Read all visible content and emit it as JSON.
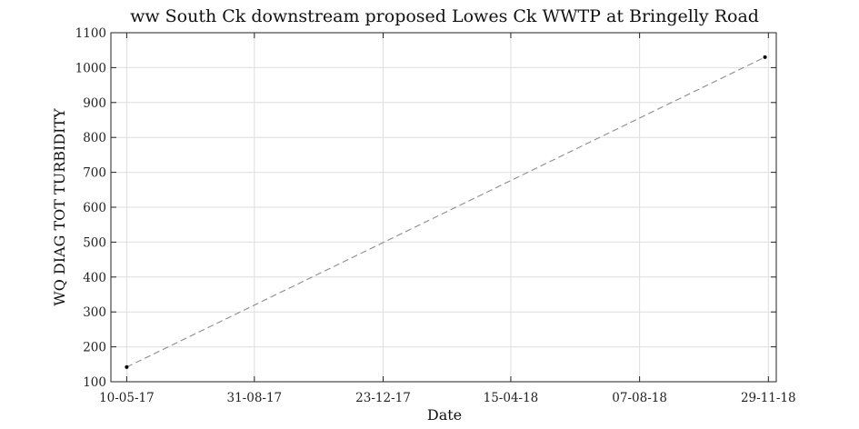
{
  "chart_data": {
    "type": "line",
    "title": "ww South Ck downstream proposed Lowes Ck WWTP at Bringelly Road",
    "xlabel": "Date",
    "ylabel": "WQ DIAG TOT TURBIDITY",
    "xlim": [
      "2017-04-26",
      "2018-12-06"
    ],
    "ylim": [
      100,
      1100
    ],
    "x_ticks": [
      {
        "date": "2017-05-10",
        "label": "10-05-17"
      },
      {
        "date": "2017-08-31",
        "label": "31-08-17"
      },
      {
        "date": "2017-12-23",
        "label": "23-12-17"
      },
      {
        "date": "2018-04-15",
        "label": "15-04-18"
      },
      {
        "date": "2018-08-07",
        "label": "07-08-18"
      },
      {
        "date": "2018-11-29",
        "label": "29-11-18"
      }
    ],
    "y_ticks": [
      100,
      200,
      300,
      400,
      500,
      600,
      700,
      800,
      900,
      1000,
      1100
    ],
    "grid": true,
    "series": [
      {
        "line_style": "dashed",
        "line_color": "#8c8c8c",
        "marker_color": "#000000",
        "points": [
          {
            "x": "2017-05-10",
            "y": 142
          },
          {
            "x": "2018-11-26",
            "y": 1030
          }
        ]
      }
    ]
  }
}
